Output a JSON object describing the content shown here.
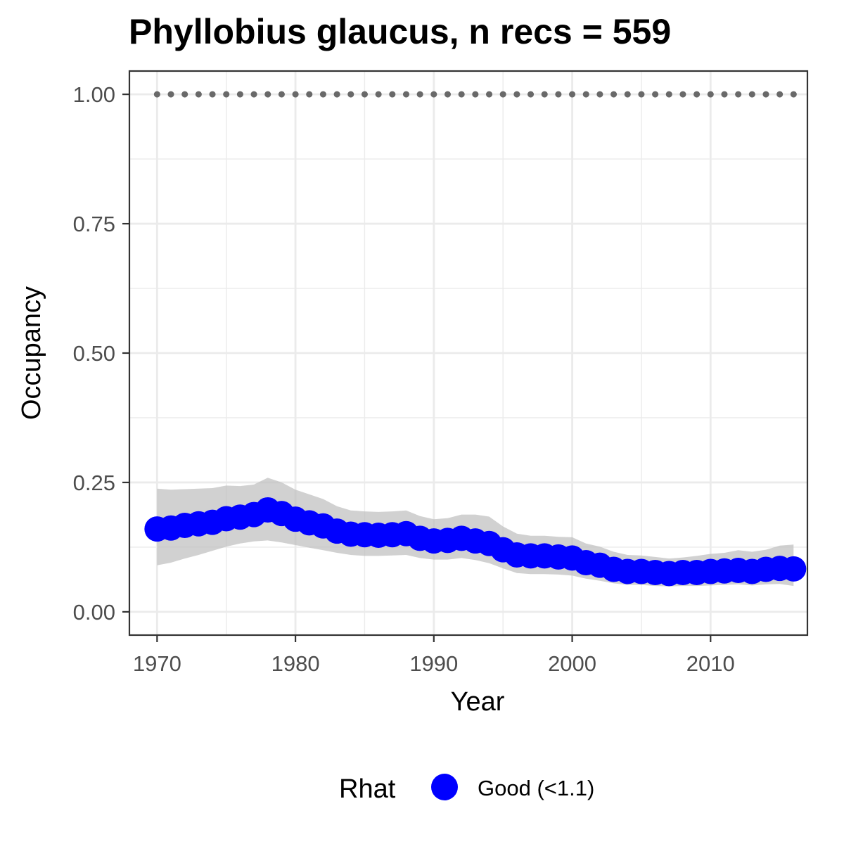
{
  "chart_data": {
    "type": "line",
    "title": "Phyllobius glaucus, n recs = 559",
    "xlabel": "Year",
    "ylabel": "Occupancy",
    "xlim": [
      1968,
      2017
    ],
    "ylim": [
      -0.045,
      1.045
    ],
    "x_ticks": [
      1970,
      1980,
      1990,
      2000,
      2010
    ],
    "x_tick_labels": [
      "1970",
      "1980",
      "1990",
      "2000",
      "2010"
    ],
    "y_ticks": [
      0,
      0.25,
      0.5,
      0.75,
      1.0
    ],
    "y_tick_labels": [
      "0.00",
      "0.25",
      "0.50",
      "0.75",
      "1.00"
    ],
    "grid": true,
    "legend": {
      "position": "bottom",
      "title": "Rhat",
      "entries": [
        {
          "label": "Good (<1.1)",
          "color": "#0000ff"
        }
      ]
    },
    "colors": {
      "series": "#0000ff",
      "ribbon": "#bebebe",
      "reference": "#696969"
    },
    "x": [
      1970,
      1971,
      1972,
      1973,
      1974,
      1975,
      1976,
      1977,
      1978,
      1979,
      1980,
      1981,
      1982,
      1983,
      1984,
      1985,
      1986,
      1987,
      1988,
      1989,
      1990,
      1991,
      1992,
      1993,
      1994,
      1995,
      1996,
      1997,
      1998,
      1999,
      2000,
      2001,
      2002,
      2003,
      2004,
      2005,
      2006,
      2007,
      2008,
      2009,
      2010,
      2011,
      2012,
      2013,
      2014,
      2015,
      2016
    ],
    "series": [
      {
        "values": [
          0.16,
          0.162,
          0.167,
          0.17,
          0.173,
          0.18,
          0.183,
          0.188,
          0.197,
          0.19,
          0.179,
          0.172,
          0.166,
          0.156,
          0.15,
          0.149,
          0.148,
          0.149,
          0.151,
          0.142,
          0.137,
          0.138,
          0.142,
          0.137,
          0.132,
          0.12,
          0.11,
          0.108,
          0.108,
          0.106,
          0.104,
          0.095,
          0.09,
          0.082,
          0.078,
          0.078,
          0.076,
          0.074,
          0.076,
          0.076,
          0.078,
          0.079,
          0.08,
          0.078,
          0.082,
          0.084,
          0.083
        ],
        "lower": [
          0.09,
          0.095,
          0.103,
          0.11,
          0.118,
          0.126,
          0.132,
          0.136,
          0.138,
          0.134,
          0.129,
          0.124,
          0.119,
          0.114,
          0.11,
          0.108,
          0.108,
          0.109,
          0.11,
          0.104,
          0.101,
          0.101,
          0.104,
          0.1,
          0.094,
          0.084,
          0.075,
          0.073,
          0.073,
          0.072,
          0.07,
          0.064,
          0.06,
          0.055,
          0.052,
          0.052,
          0.05,
          0.049,
          0.05,
          0.05,
          0.051,
          0.052,
          0.053,
          0.051,
          0.053,
          0.054,
          0.05
        ],
        "upper": [
          0.238,
          0.236,
          0.237,
          0.238,
          0.239,
          0.244,
          0.243,
          0.246,
          0.259,
          0.25,
          0.236,
          0.227,
          0.218,
          0.204,
          0.196,
          0.194,
          0.193,
          0.194,
          0.196,
          0.185,
          0.179,
          0.181,
          0.188,
          0.188,
          0.184,
          0.165,
          0.151,
          0.147,
          0.147,
          0.145,
          0.144,
          0.132,
          0.126,
          0.116,
          0.11,
          0.109,
          0.106,
          0.103,
          0.105,
          0.108,
          0.112,
          0.114,
          0.119,
          0.116,
          0.12,
          0.128,
          0.13
        ]
      },
      {
        "values": [
          1.0,
          1.0,
          1.0,
          1.0,
          1.0,
          1.0,
          1.0,
          1.0,
          1.0,
          1.0,
          1.0,
          1.0,
          1.0,
          1.0,
          1.0,
          1.0,
          1.0,
          1.0,
          1.0,
          1.0,
          1.0,
          1.0,
          1.0,
          1.0,
          1.0,
          1.0,
          1.0,
          1.0,
          1.0,
          1.0,
          1.0,
          1.0,
          1.0,
          1.0,
          1.0,
          1.0,
          1.0,
          1.0,
          1.0,
          1.0,
          1.0,
          1.0,
          1.0,
          1.0,
          1.0,
          1.0,
          1.0
        ],
        "style": "dotted"
      }
    ]
  }
}
